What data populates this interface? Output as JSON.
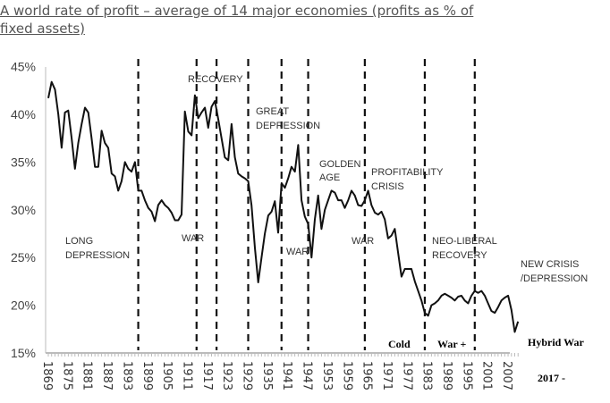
{
  "chart_data": {
    "type": "line",
    "title": "A world rate of profit – average of 14 major economies (profits as % of fixed assets)",
    "title_lines": [
      "A world rate of profit – average of 14 major economies (profits as % of",
      "fixed assets)"
    ],
    "xlabel": "",
    "ylabel": "",
    "ylim": [
      15,
      45
    ],
    "xlim": [
      1869,
      2010
    ],
    "y_ticks": [
      "15%",
      "20%",
      "25%",
      "30%",
      "35%",
      "40%",
      "45%"
    ],
    "x_ticks": [
      "1869",
      "1875",
      "1881",
      "1887",
      "1893",
      "1899",
      "1905",
      "1911",
      "1917",
      "1923",
      "1929",
      "1935",
      "1941",
      "1947",
      "1953",
      "1959",
      "1965",
      "1971",
      "1977",
      "1983",
      "1989",
      "1995",
      "2001",
      "2007"
    ],
    "grid": false,
    "series": [
      {
        "name": "rate of profit",
        "x": [
          1869,
          1870,
          1871,
          1872,
          1873,
          1874,
          1875,
          1876,
          1877,
          1878,
          1879,
          1880,
          1881,
          1882,
          1883,
          1884,
          1885,
          1886,
          1887,
          1888,
          1889,
          1890,
          1891,
          1892,
          1893,
          1894,
          1895,
          1896,
          1897,
          1898,
          1899,
          1900,
          1901,
          1902,
          1903,
          1904,
          1905,
          1906,
          1907,
          1908,
          1909,
          1910,
          1911,
          1912,
          1913,
          1914,
          1915,
          1916,
          1917,
          1918,
          1919,
          1920,
          1921,
          1922,
          1923,
          1924,
          1925,
          1926,
          1927,
          1928,
          1929,
          1930,
          1931,
          1932,
          1933,
          1934,
          1935,
          1936,
          1937,
          1938,
          1939,
          1940,
          1941,
          1942,
          1943,
          1944,
          1945,
          1946,
          1947,
          1948,
          1949,
          1950,
          1951,
          1952,
          1953,
          1954,
          1955,
          1956,
          1957,
          1958,
          1959,
          1960,
          1961,
          1962,
          1963,
          1964,
          1965,
          1966,
          1967,
          1968,
          1969,
          1970,
          1971,
          1972,
          1973,
          1974,
          1975,
          1976,
          1977,
          1978,
          1979,
          1980,
          1981,
          1982,
          1983,
          1984,
          1985,
          1986,
          1987,
          1988,
          1989,
          1990,
          1991,
          1992,
          1993,
          1994,
          1995,
          1996,
          1997,
          1998,
          1999,
          2000,
          2001,
          2002,
          2003,
          2004,
          2005,
          2006,
          2007,
          2008,
          2009,
          2010
        ],
        "values": [
          41.7,
          43.4,
          42.6,
          40,
          36.5,
          40.2,
          40.4,
          37.5,
          34.3,
          37,
          39,
          40.7,
          40.2,
          37.5,
          34.5,
          34.5,
          38.3,
          37,
          36.5,
          33.8,
          33.5,
          32,
          33,
          35,
          34.3,
          34,
          35,
          32,
          32,
          31,
          30.2,
          29.8,
          28.8,
          30.5,
          31,
          30.5,
          30.2,
          29.7,
          28.9,
          28.9,
          29.5,
          40.3,
          38.2,
          37.8,
          42,
          39.6,
          40.2,
          40.7,
          38.6,
          40.8,
          41.4,
          39.5,
          37.5,
          35.5,
          35.2,
          39,
          35.5,
          33.8,
          33.5,
          33.3,
          33,
          30.5,
          26,
          22.4,
          25,
          27.5,
          29.4,
          29.8,
          30.9,
          27.6,
          32.8,
          32.3,
          33.3,
          34.5,
          34,
          36.8,
          31,
          29.3,
          28.5,
          25,
          29,
          31.5,
          28,
          30,
          31,
          32,
          31.8,
          31,
          31,
          30.2,
          31,
          32,
          31.5,
          30.5,
          30.4,
          31,
          32,
          30.5,
          29.7,
          29.5,
          29.8,
          29,
          27,
          27.3,
          28,
          25.5,
          23,
          23.8,
          23.8,
          23.8,
          22.5,
          21.5,
          20.5,
          19.2,
          18.9,
          20,
          20.2,
          20.5,
          21,
          21.2,
          21,
          20.8,
          20.5,
          20.9,
          21,
          20.5,
          20.2,
          21,
          21.5,
          21.3,
          21.5,
          21,
          20.2,
          19.4,
          19.2,
          19.8,
          20.5,
          20.8,
          21,
          19.5,
          17.2,
          18.3
        ]
      }
    ],
    "period_dividers": [
      1896,
      1913.5,
      1919.5,
      1929,
      1939,
      1947,
      1964,
      1982,
      1997
    ],
    "annotations": {
      "long_depression": [
        "LONG",
        "DEPRESSION"
      ],
      "war1": "WAR",
      "recovery": "RECOVERY",
      "great_depression": [
        "GREAT",
        "DEPRESSION"
      ],
      "war2": "WAR",
      "golden_age": [
        "GOLDEN",
        "AGE"
      ],
      "war3": "WAR",
      "profitability_crisis": [
        "PROFITABILITY",
        "CRISIS"
      ],
      "neo_liberal": [
        "NEO-LIBERAL",
        "RECOVERY"
      ],
      "new_crisis": [
        "NEW CRISIS",
        "/DEPRESSION"
      ],
      "cold": "Cold",
      "war_plus": "War +",
      "hybrid_war": "Hybrid War",
      "year_2017": "2017 -"
    },
    "line_color": "#111111"
  }
}
